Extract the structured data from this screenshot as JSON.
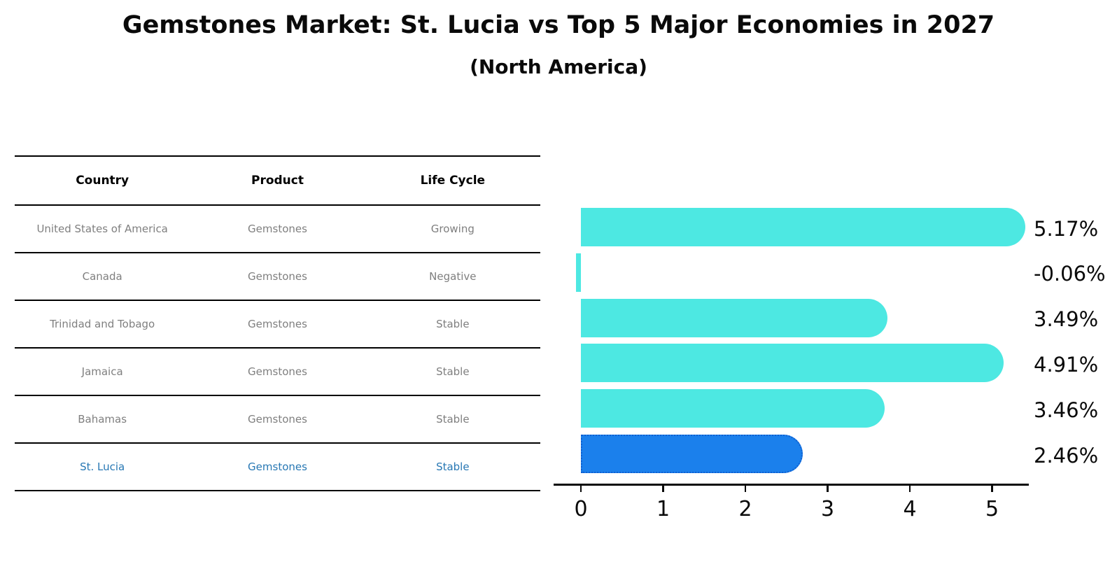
{
  "title": "Gemstones Market: St. Lucia vs Top 5 Major Economies in 2027",
  "subtitle": "(North America)",
  "table": {
    "headers": [
      "Country",
      "Product",
      "Life Cycle"
    ],
    "rows": [
      {
        "country": "United States of America",
        "product": "Gemstones",
        "life_cycle": "Growing",
        "highlighted": false
      },
      {
        "country": "Canada",
        "product": "Gemstones",
        "life_cycle": "Negative",
        "highlighted": false
      },
      {
        "country": "Trinidad and Tobago",
        "product": "Gemstones",
        "life_cycle": "Stable",
        "highlighted": false
      },
      {
        "country": "Jamaica",
        "product": "Gemstones",
        "life_cycle": "Stable",
        "highlighted": false
      },
      {
        "country": "Bahamas",
        "product": "Gemstones",
        "life_cycle": "Stable",
        "highlighted": false
      },
      {
        "country": "St. Lucia",
        "product": "Gemstones",
        "life_cycle": "Stable",
        "highlighted": true
      }
    ]
  },
  "chart_data": {
    "type": "bar",
    "orientation": "horizontal",
    "title": "Gemstones Market: St. Lucia vs Top 5 Major Economies in 2027 (North America)",
    "categories": [
      "United States of America",
      "Canada",
      "Trinidad and Tobago",
      "Jamaica",
      "Bahamas",
      "St. Lucia"
    ],
    "values": [
      5.17,
      -0.06,
      3.49,
      4.91,
      3.46,
      2.46
    ],
    "value_labels": [
      "5.17%",
      "-0.06%",
      "3.49%",
      "4.91%",
      "3.46%",
      "2.46%"
    ],
    "x_ticks": [
      0,
      1,
      2,
      3,
      4,
      5
    ],
    "xlim": [
      -0.33,
      5.44
    ],
    "grid": false,
    "legend": "none",
    "highlight_index": 5,
    "bar_color": "#4DE8E2",
    "highlight_bar_color": "#1B80EC",
    "highlight_border_color": "#0F5FD0",
    "highlight_text_color": "#2878B4",
    "row_text_color": "#7F7F7F",
    "text_color": "#0A0A0A"
  }
}
